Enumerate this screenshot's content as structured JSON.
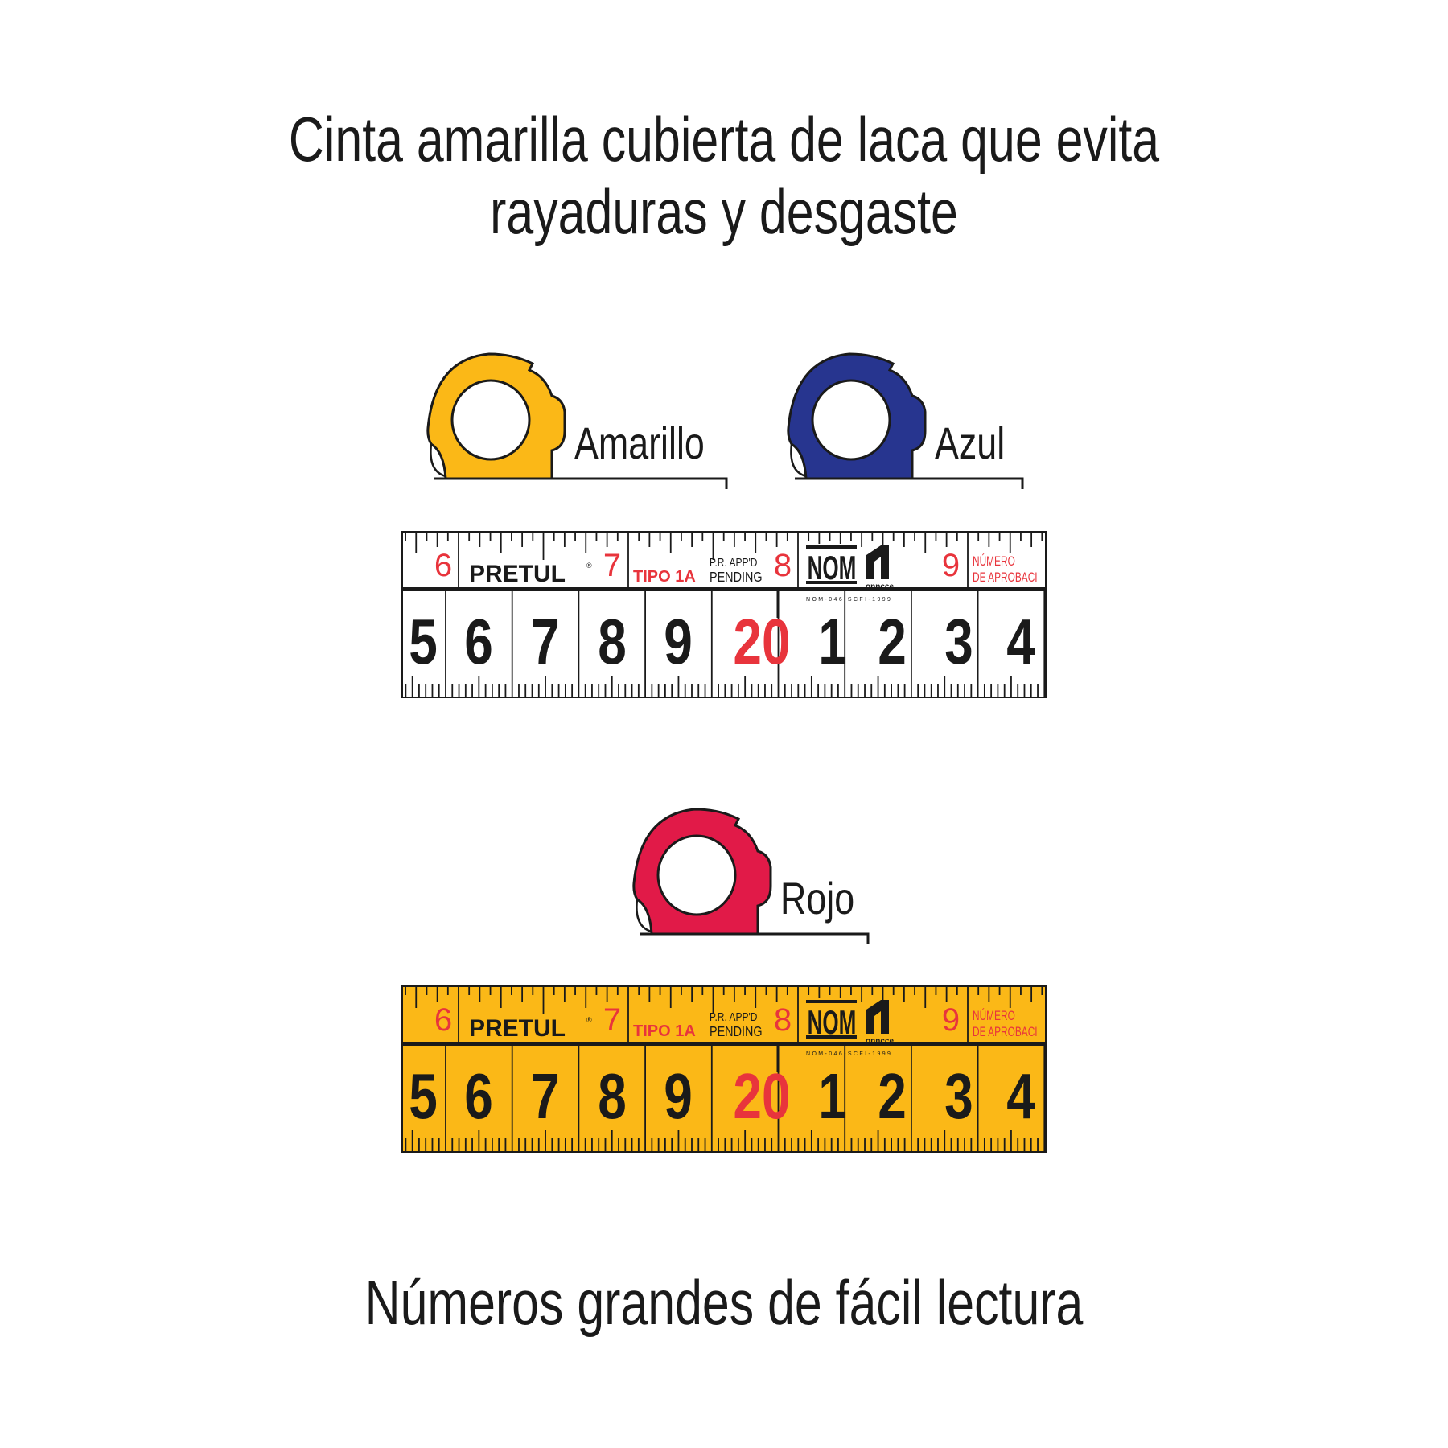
{
  "heading": {
    "line1": "Cinta amarilla cubierta de laca que evita",
    "line2": "rayaduras y desgaste"
  },
  "variants": [
    {
      "label": "Amarillo",
      "color": "#FBB817"
    },
    {
      "label": "Azul",
      "color": "#27358F"
    },
    {
      "label": "Rojo",
      "color": "#E11A48"
    }
  ],
  "tape": {
    "brand": "PRETUL",
    "registered": "®",
    "type_text": "TIPO 1A",
    "pending_line1": "P.R. APP'D",
    "pending_line2": "PENDING",
    "nom": "NOM",
    "onncce": "onncce",
    "standard": "NOM-046-SCFI-1999",
    "approval_line1": "NÚMERO",
    "approval_line2": "DE APROBACI",
    "inch_numbers": [
      "6",
      "7",
      "8",
      "9"
    ],
    "cm_numbers": [
      "5",
      "6",
      "7",
      "8",
      "9",
      "20",
      "1",
      "2",
      "3",
      "4"
    ],
    "highlight_number": "20",
    "tapes": [
      {
        "background": "#FFFFFF"
      },
      {
        "background": "#FBB817"
      }
    ],
    "accent_color": "#E8343C"
  },
  "footer": {
    "text": "Números grandes de fácil lectura"
  }
}
